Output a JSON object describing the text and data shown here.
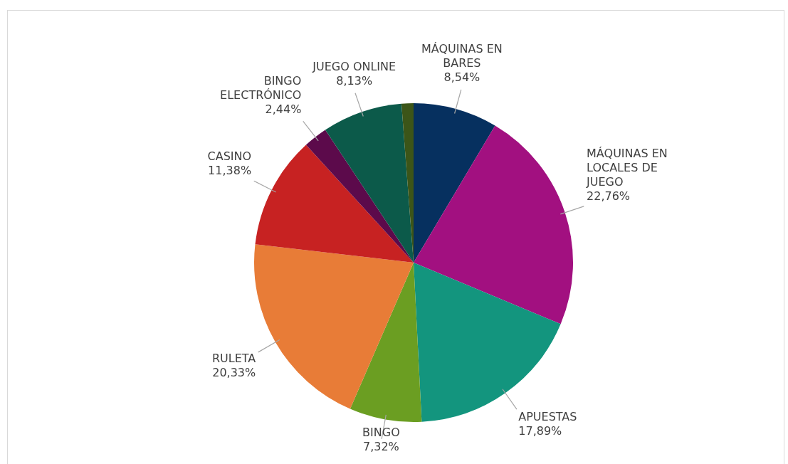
{
  "chart_data": {
    "type": "pie",
    "categories": [
      "MÁQUINAS EN BARES",
      "MÁQUINAS EN LOCALES DE JUEGO",
      "APUESTAS",
      "BINGO",
      "RULETA",
      "CASINO",
      "BINGO ELECTRÓNICO",
      "JUEGO ONLINE",
      null
    ],
    "values": [
      8.54,
      22.76,
      17.89,
      7.32,
      20.33,
      11.38,
      2.44,
      8.13,
      1.21
    ],
    "colors": [
      "#06305f",
      "#a21080",
      "#13957e",
      "#6b9e22",
      "#e87c37",
      "#c72222",
      "#5c0a4b",
      "#0c5a4a",
      "#3c5518"
    ],
    "value_labels": [
      "8,54%",
      "22,76%",
      "17,89%",
      "7,32%",
      "20,33%",
      "11,38%",
      "2,44%",
      "8,13%",
      null
    ],
    "legend": false
  }
}
